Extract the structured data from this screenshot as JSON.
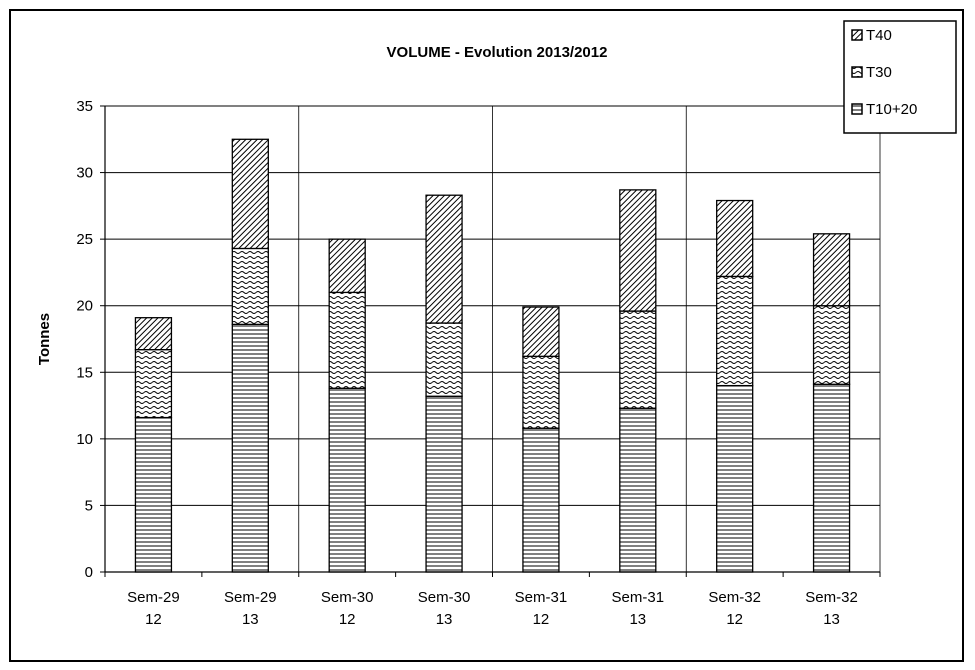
{
  "chart_data": {
    "type": "bar",
    "stacked": true,
    "title": "VOLUME - Evolution 2013/2012",
    "xlabel": "",
    "ylabel": "Tonnes",
    "ylim": [
      0,
      35
    ],
    "yticks": [
      0,
      5,
      10,
      15,
      20,
      25,
      30,
      35
    ],
    "grid": true,
    "legend_position": "top-right",
    "categories": [
      [
        "Sem-29",
        "12"
      ],
      [
        "Sem-29",
        "13"
      ],
      [
        "Sem-30",
        "12"
      ],
      [
        "Sem-30",
        "13"
      ],
      [
        "Sem-31",
        "12"
      ],
      [
        "Sem-31",
        "13"
      ],
      [
        "Sem-32",
        "12"
      ],
      [
        "Sem-32",
        "13"
      ]
    ],
    "series": [
      {
        "name": "T10+20",
        "pattern": "horizontal-lines",
        "values": [
          11.6,
          18.6,
          13.8,
          13.2,
          10.8,
          12.3,
          14.0,
          14.1
        ]
      },
      {
        "name": "T30",
        "pattern": "waves",
        "values": [
          5.1,
          5.7,
          7.2,
          5.5,
          5.4,
          7.3,
          8.2,
          5.9
        ]
      },
      {
        "name": "T40",
        "pattern": "diagonal-lines",
        "values": [
          2.4,
          8.2,
          4.0,
          9.6,
          3.7,
          9.1,
          5.7,
          5.4
        ]
      }
    ],
    "legend_order": [
      "T40",
      "T30",
      "T10+20"
    ],
    "colors": {
      "stroke": "#000000",
      "fill": "#ffffff",
      "grid": "#000000"
    }
  }
}
